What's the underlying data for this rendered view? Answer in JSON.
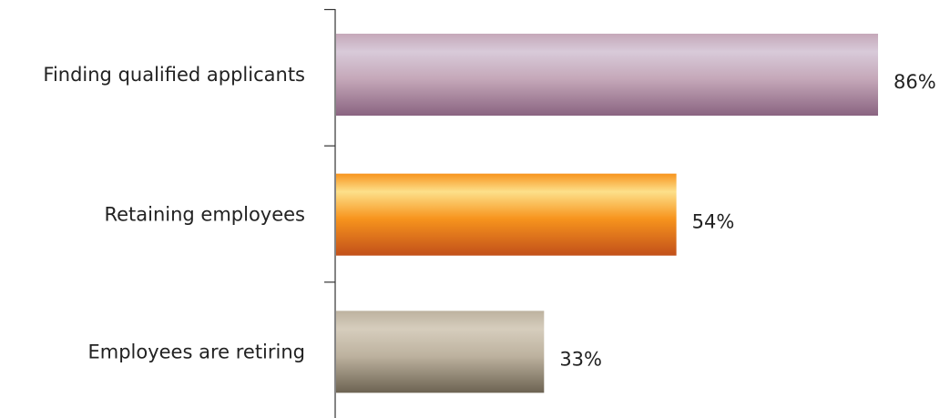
{
  "chart_data": {
    "type": "bar",
    "orientation": "horizontal",
    "categories": [
      "Finding qualified applicants",
      "Retaining employees",
      "Employees are retiring"
    ],
    "values": [
      86,
      54,
      33
    ],
    "value_labels": [
      "86%",
      "54%",
      "33%"
    ],
    "unit": "%",
    "xlim": [
      0,
      100
    ],
    "grid": false,
    "legend": "none",
    "title": "",
    "xlabel": "",
    "ylabel": "",
    "bar_colors": [
      [
        "#d8cad9",
        "#c5a8b9",
        "#8a6481"
      ],
      [
        "#fde08a",
        "#f7941d",
        "#c2501a"
      ],
      [
        "#d6cdbd",
        "#bdb29f",
        "#6c6352"
      ]
    ],
    "axis_color": "#333333"
  }
}
